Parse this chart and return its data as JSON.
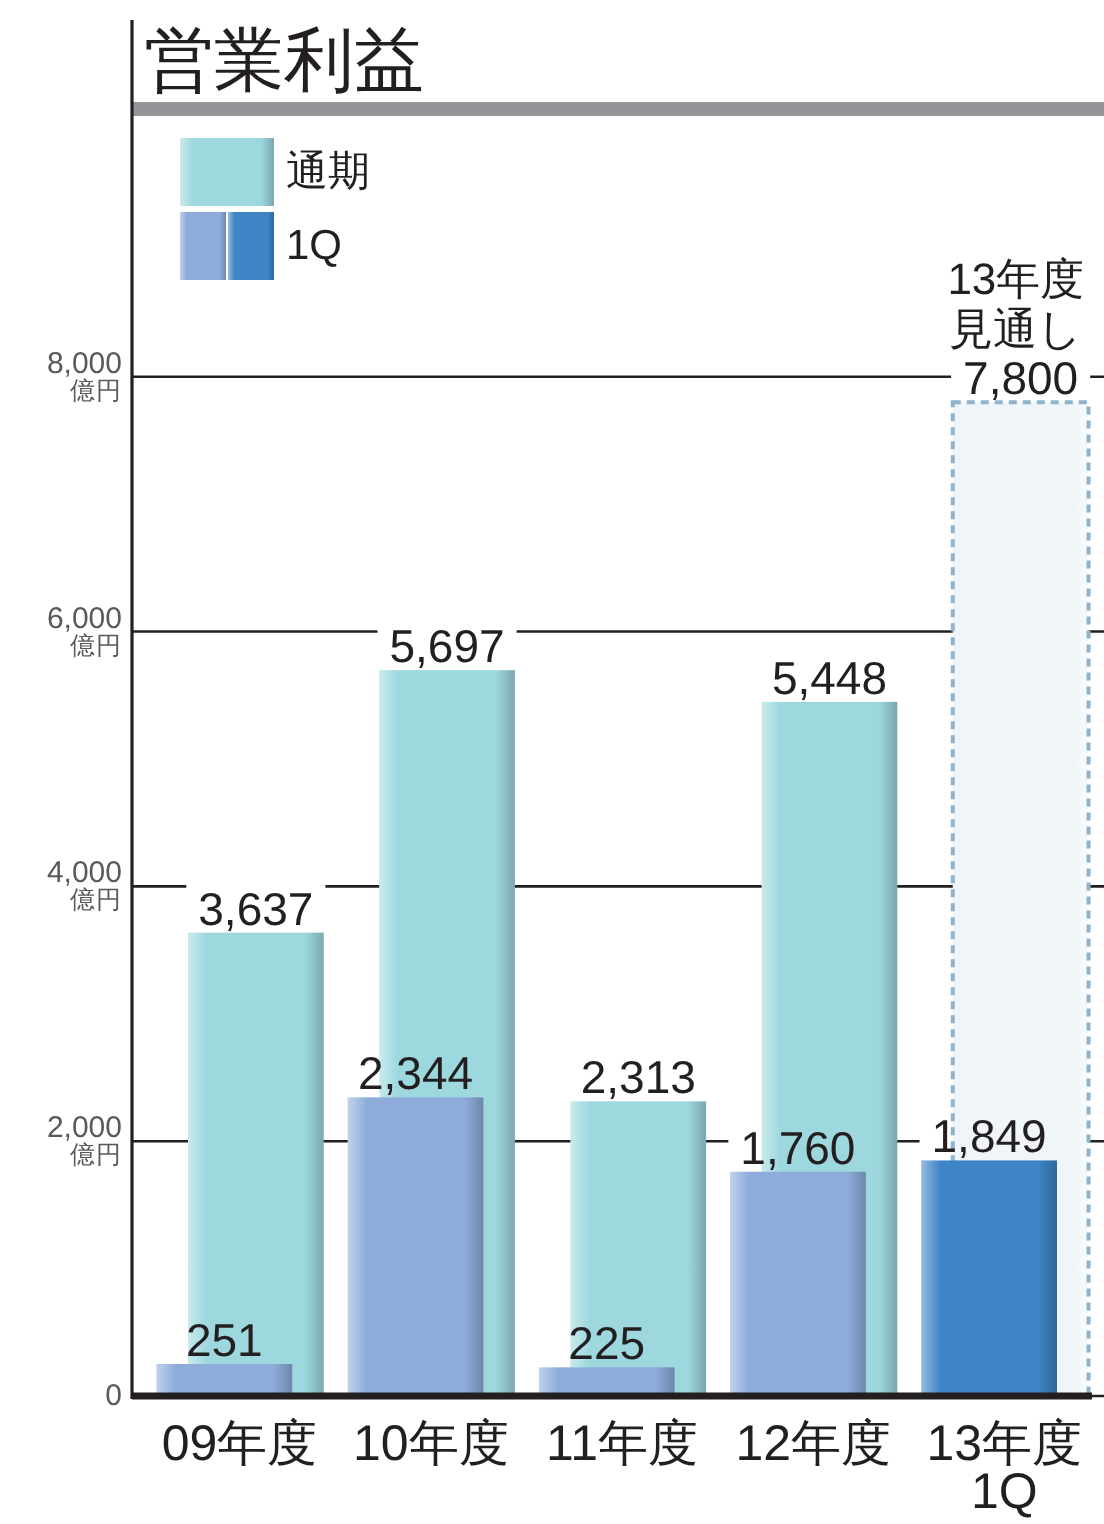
{
  "chart_data": {
    "type": "bar",
    "title": "営業利益",
    "categories": [
      "09年度",
      "10年度",
      "11年度",
      "12年度",
      "13年度\n1Q"
    ],
    "series": [
      {
        "name": "通期",
        "color": "#9dd8de",
        "values": [
          3637,
          5697,
          2313,
          5448,
          null
        ],
        "value_labels": [
          "3,637",
          "5,697",
          "2,313",
          "5,448",
          null
        ]
      },
      {
        "color": "#8db4cc",
        "line_style": "dashed",
        "values": [
          null,
          null,
          null,
          null,
          7800
        ],
        "value_labels": [
          null,
          null,
          null,
          null,
          "7,800"
        ]
      },
      {
        "name": "1Q",
        "colors": [
          "#8eacdb",
          "#8eacdb",
          "#8eacdb",
          "#8eacdb",
          "#3e85c5"
        ],
        "values": [
          251,
          2344,
          225,
          1760,
          1849
        ],
        "value_labels": [
          "251",
          "2,344",
          "225",
          "1,760",
          "1,849"
        ]
      }
    ],
    "ylim": [
      0,
      10800
    ],
    "yticks": [
      0,
      {
        "value": 2000,
        "label": "2,000\n億円"
      },
      {
        "value": 4000,
        "label": "4,000\n億円"
      },
      {
        "value": 6000,
        "label": "6,000\n億円"
      },
      {
        "value": 8000,
        "label": "8,000\n億円"
      }
    ],
    "grid": "y",
    "legend": "top left",
    "annotations": [
      {
        "text": "13年度見通し",
        "x": "13年度\n1Q",
        "y": 7800
      }
    ]
  }
}
